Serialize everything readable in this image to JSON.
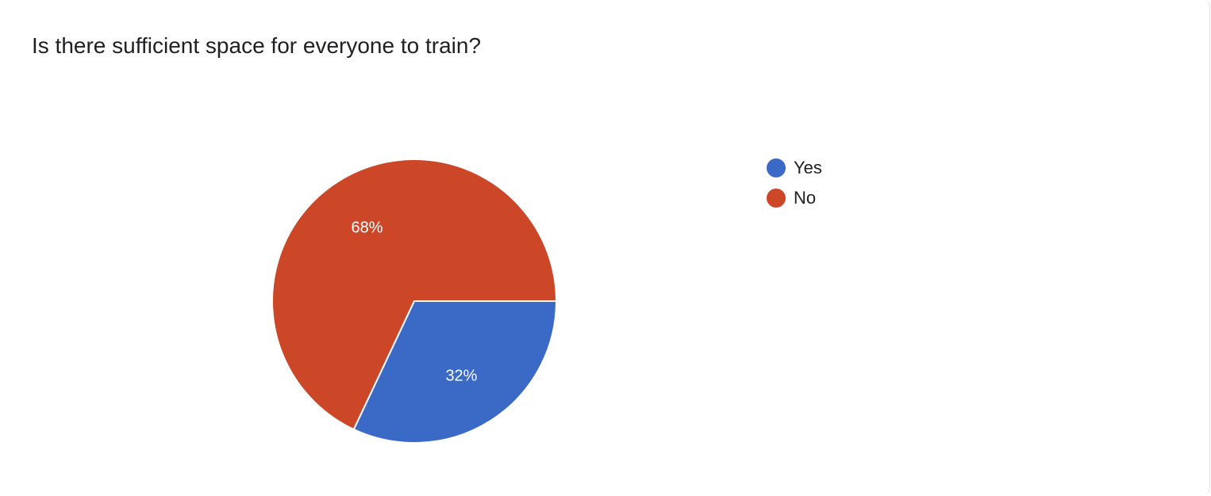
{
  "title": "Is there sufficient space for everyone to train?",
  "chart_data": {
    "type": "pie",
    "title": "Is there sufficient space for everyone to train?",
    "categories": [
      "Yes",
      "No"
    ],
    "values": [
      32,
      68
    ],
    "labels": [
      "32%",
      "68%"
    ],
    "colors": [
      "#3b69c6",
      "#cb4728"
    ],
    "legend": "right"
  }
}
